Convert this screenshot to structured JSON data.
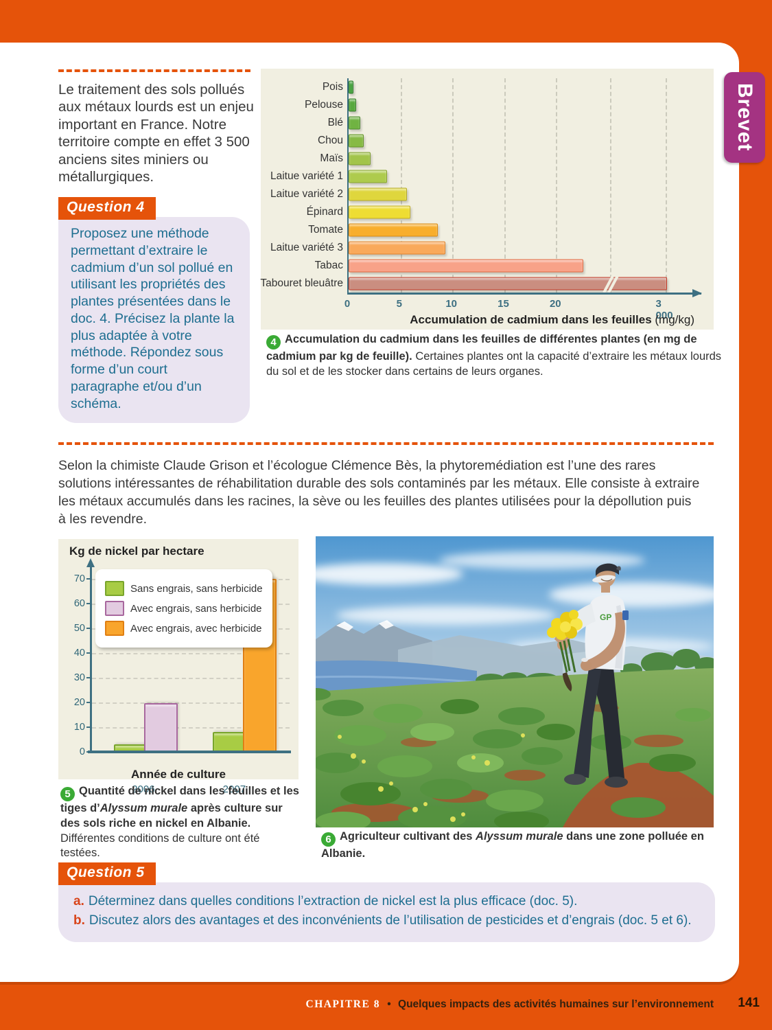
{
  "page": {
    "frame_color": "#e5530a",
    "brevet_tab_label": "Brevet",
    "brevet_tab_color": "#a43382",
    "footer": {
      "chapter": "CHAPITRE 8",
      "bullet": "•",
      "title": "Quelques impacts des activités humaines sur l’environnement",
      "page_number": "141"
    }
  },
  "intro": {
    "text": "Le traitement des sols pollués aux métaux lourds est un enjeu important en France. Notre territoire compte en effet 3 500 anciens sites miniers ou métallurgiques."
  },
  "question4": {
    "label": "Question 4",
    "text": "Proposez une méthode permettant d’extraire le cadmium d’un sol pollué en utilisant les propriétés des plantes présentées dans le doc. 4. Précisez la plante la plus adaptée à votre méthode. Répondez sous forme d’un court paragraphe et/ou d’un schéma."
  },
  "doc4": {
    "badge": "4",
    "caption_bold": "Accumulation du cadmium dans les feuilles de différentes plantes (en mg de cadmium par kg de feuille).",
    "caption_rest": " Certaines plantes ont la capacité d’extraire les métaux lourds du sol et de les stocker dans certains de leurs organes."
  },
  "middle_paragraph": {
    "text": "Selon la chimiste Claude Grison et l’écologue Clémence Bès, la phytoremédiation est l’une des rares solutions intéressantes de réhabilitation durable des sols contaminés par les métaux. Elle consiste à extraire les métaux accumulés dans les racines, la sève ou les feuilles des plantes utilisées pour la dépollution puis à les revendre."
  },
  "doc5": {
    "badge": "5",
    "caption_parts": [
      {
        "t": "Quantité de nickel dans les feuilles et les tiges d’",
        "b": true,
        "i": false
      },
      {
        "t": "Alyssum murale",
        "b": true,
        "i": true
      },
      {
        "t": " après culture sur des sols riche en nickel en Albanie.",
        "b": true,
        "i": false
      },
      {
        "t": " Différentes conditions de culture ont été testées.",
        "b": false,
        "i": false
      }
    ]
  },
  "doc6": {
    "badge": "6",
    "caption_parts": [
      {
        "t": "Agriculteur cultivant des ",
        "b": true,
        "i": false
      },
      {
        "t": "Alyssum murale",
        "b": true,
        "i": true
      },
      {
        "t": " dans une zone polluée en Albanie.",
        "b": true,
        "i": false
      }
    ]
  },
  "photo": {
    "shirt_logo_text": "GP"
  },
  "question5": {
    "label": "Question 5",
    "items": [
      {
        "letter": "a.",
        "text": "Déterminez dans quelles conditions l’extraction de nickel est la plus efficace (doc. 5)."
      },
      {
        "letter": "b.",
        "text": "Discutez alors des avantages et des inconvénients de l’utilisation de pesticides et d’engrais (doc. 5 et 6)."
      }
    ]
  },
  "chart_data": [
    {
      "id": "doc4-cadmium",
      "type": "bar",
      "orientation": "horizontal",
      "categories": [
        "Pois",
        "Pelouse",
        "Blé",
        "Chou",
        "Maïs",
        "Laitue variété 1",
        "Laitue variété 2",
        "Épinard",
        "Tomate",
        "Laitue variété 3",
        "Tabac",
        "Tabouret bleuâtre"
      ],
      "values": [
        0.3,
        0.6,
        1.0,
        1.3,
        2.0,
        3.6,
        5.5,
        5.8,
        8.5,
        9.2,
        22.5,
        3000
      ],
      "bar_colors": [
        "#44a03c",
        "#57a83e",
        "#70b342",
        "#87ba44",
        "#a2c44a",
        "#aecb4d",
        "#dfd63d",
        "#eedd33",
        "#f8ae2c",
        "#f9a95b",
        "#f8a288",
        "#ca8e80"
      ],
      "bar_borders": [
        "#2e7d2a",
        "#3c8030",
        "#4f8c30",
        "#639428",
        "#7d9e2e",
        "#88a52f",
        "#b5ab26",
        "#c4b01f",
        "#d88a14",
        "#e0832c",
        "#e06a40",
        "#c23a28"
      ],
      "xticks": [
        0,
        5,
        10,
        15,
        20
      ],
      "xtick_break_label": "3 000",
      "axis_break": true,
      "xlabel_bold": "Accumulation de cadmium dans les feuilles",
      "xlabel_unit": " (mg/kg)",
      "grid": true,
      "background": "#f1efe1"
    },
    {
      "id": "doc5-nickel",
      "type": "bar",
      "orientation": "vertical",
      "title": "Kg de nickel par hectare",
      "xlabel": "Année de culture",
      "categories": [
        "2006",
        "2007"
      ],
      "series": [
        {
          "name": "Sans engrais, sans herbicide",
          "color": "#a8cc44",
          "border": "#79a52b",
          "values": [
            2,
            7
          ]
        },
        {
          "name": "Avec engrais, sans herbicide",
          "color": "#e2cbe0",
          "border": "#a8679e",
          "values": [
            18.5,
            null
          ]
        },
        {
          "name": "Avec engrais, avec herbicide",
          "color": "#f9a52c",
          "border": "#e07f12",
          "values": [
            null,
            69
          ]
        }
      ],
      "ylim": [
        0,
        75
      ],
      "yticks": [
        0,
        10,
        20,
        30,
        40,
        50,
        60,
        70
      ],
      "legend_position": "top-left-inside",
      "grid": true,
      "background": "#f1efe1"
    }
  ]
}
